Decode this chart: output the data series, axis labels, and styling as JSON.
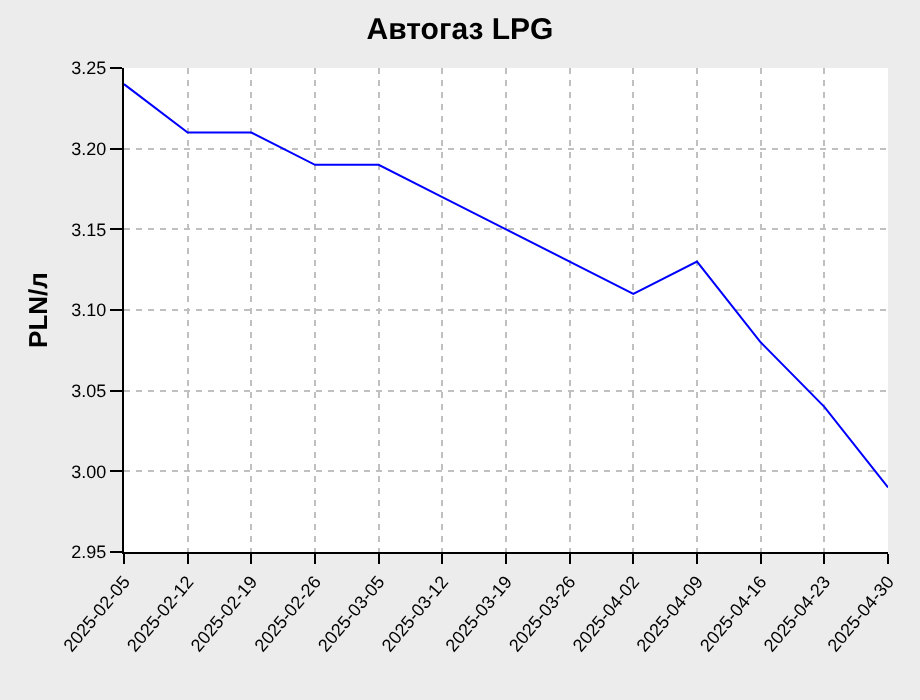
{
  "chart_data": {
    "type": "line",
    "title": "Автогаз LPG",
    "ylabel": "PLN/л",
    "categories": [
      "2025-02-05",
      "2025-02-12",
      "2025-02-19",
      "2025-02-26",
      "2025-03-05",
      "2025-03-12",
      "2025-03-19",
      "2025-03-26",
      "2025-04-02",
      "2025-04-09",
      "2025-04-16",
      "2025-04-23",
      "2025-04-30"
    ],
    "series": [
      {
        "color": "#0000ff",
        "values": [
          3.24,
          3.21,
          3.21,
          3.19,
          3.19,
          3.17,
          3.15,
          3.13,
          3.11,
          3.13,
          3.08,
          3.04,
          2.99
        ]
      }
    ],
    "ylim": [
      2.95,
      3.25
    ],
    "yticks": [
      {
        "value": 2.95,
        "label": "2.95"
      },
      {
        "value": 3.0,
        "label": "3.00"
      },
      {
        "value": 3.05,
        "label": "3.05"
      },
      {
        "value": 3.1,
        "label": "3.10"
      },
      {
        "value": 3.15,
        "label": "3.15"
      },
      {
        "value": 3.2,
        "label": "3.20"
      },
      {
        "value": 3.25,
        "label": "3.25"
      }
    ],
    "grid": true,
    "marker": "none",
    "line_style": "solid"
  }
}
